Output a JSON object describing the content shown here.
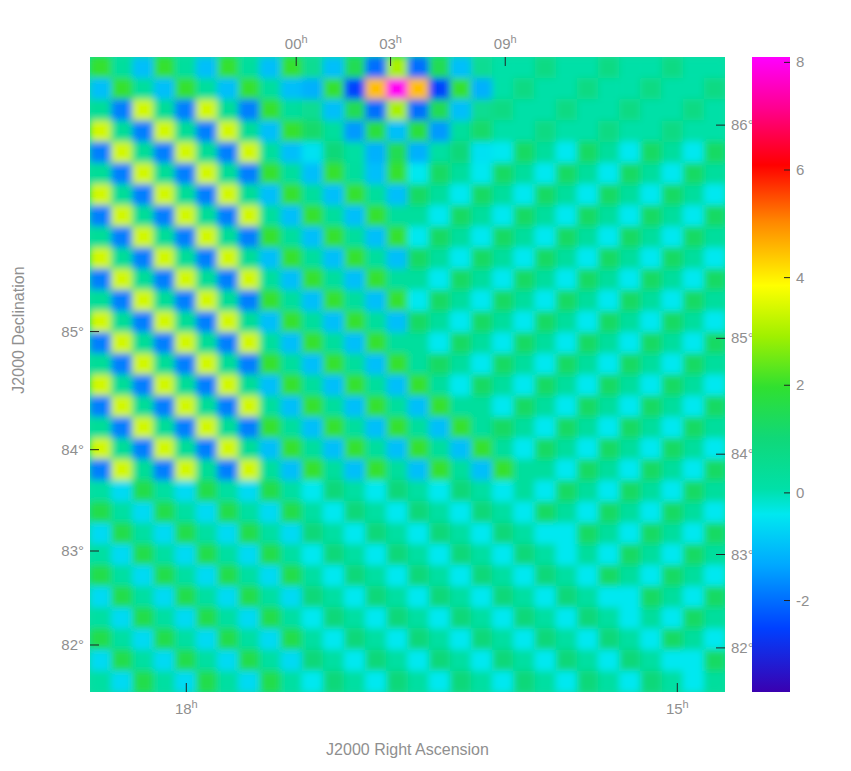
{
  "chart_data": {
    "type": "heatmap",
    "x_label": "J2000 Right Ascension",
    "y_label": "J2000 Declination",
    "ra_ticks_top": [
      {
        "value": 0,
        "label": "00h"
      },
      {
        "value": 3,
        "label": "03h"
      },
      {
        "value": 9,
        "label": "09h"
      }
    ],
    "ra_ticks_bottom": [
      {
        "value": 18,
        "label": "18h"
      },
      {
        "value": 15,
        "label": "15h"
      }
    ],
    "dec_ticks_left": [
      {
        "value": 85,
        "label": "85°"
      },
      {
        "value": 84,
        "label": "84°"
      },
      {
        "value": 83,
        "label": "83°"
      },
      {
        "value": 82,
        "label": "82°"
      }
    ],
    "dec_ticks_right": [
      {
        "value": 86,
        "label": "86°"
      },
      {
        "value": 85,
        "label": "85°"
      },
      {
        "value": 84,
        "label": "84°"
      },
      {
        "value": 83,
        "label": "83°"
      },
      {
        "value": 82,
        "label": "82°"
      }
    ],
    "colorbar": {
      "range": [
        -3.7,
        8.1
      ],
      "ticks": [
        8,
        6,
        4,
        2,
        0,
        -2
      ]
    },
    "cells": [
      [
        2.0,
        0.3,
        -1.0,
        2.0,
        0.3,
        -1.0,
        2.0,
        0.3,
        -1.0,
        2.0,
        0.5,
        -1.0,
        1.5,
        -2.0,
        3.0,
        -2.0,
        1.5,
        -1.0,
        0.5,
        0.1,
        0.1,
        0.8,
        0.1,
        0.1,
        0.8,
        0.1,
        0.1,
        0.8,
        0.1,
        0.1
      ],
      [
        -1.0,
        2.0,
        0.3,
        -1.0,
        2.0,
        0.3,
        -1.0,
        2.0,
        0.3,
        -1.0,
        -1.2,
        2.0,
        -2.5,
        4.5,
        8.0,
        4.5,
        -2.5,
        2.0,
        -1.2,
        0.1,
        0.8,
        0.1,
        0.1,
        0.8,
        0.1,
        0.1,
        0.8,
        0.1,
        0.1,
        0.8
      ],
      [
        0.4,
        -1.8,
        3.4,
        0.4,
        -1.8,
        3.4,
        0.4,
        -1.8,
        2.0,
        0.3,
        0.5,
        -1.0,
        1.5,
        -2.0,
        3.0,
        -2.0,
        1.5,
        -1.0,
        0.5,
        0.8,
        0.1,
        0.1,
        0.8,
        0.1,
        0.1,
        0.8,
        0.1,
        0.1,
        0.8,
        0.1
      ],
      [
        3.4,
        0.4,
        -1.8,
        3.4,
        0.4,
        -1.8,
        3.4,
        0.4,
        -1.0,
        2.0,
        1.2,
        0.3,
        -1.5,
        1.8,
        -1.0,
        1.8,
        -1.5,
        0.3,
        1.2,
        0.1,
        0.1,
        0.8,
        0.1,
        0.1,
        0.8,
        0.1,
        0.1,
        0.8,
        0.1,
        0.1
      ],
      [
        -1.8,
        3.4,
        0.4,
        -1.8,
        3.4,
        0.4,
        -1.8,
        3.4,
        0.3,
        -1.0,
        -0.5,
        1.0,
        0.2,
        -1.2,
        1.5,
        -1.2,
        0.2,
        1.0,
        -0.5,
        -0.4,
        1.3,
        0.3,
        -0.4,
        1.3,
        0.3,
        -0.4,
        1.3,
        0.3,
        -0.4,
        1.3
      ],
      [
        0.4,
        -1.8,
        3.4,
        0.4,
        -1.8,
        3.4,
        0.4,
        -1.8,
        2.0,
        0.3,
        -1.0,
        2.0,
        0.3,
        -1.0,
        2.0,
        -0.4,
        1.3,
        0.3,
        -0.4,
        1.3,
        0.3,
        -0.4,
        1.3,
        0.3,
        -0.4,
        1.3,
        0.3,
        -0.4,
        1.3,
        0.3
      ],
      [
        3.4,
        0.4,
        -1.8,
        3.4,
        0.4,
        -1.8,
        3.4,
        0.4,
        -1.0,
        2.0,
        0.3,
        -1.0,
        2.0,
        0.3,
        -1.0,
        1.3,
        0.3,
        -0.4,
        1.3,
        0.3,
        -0.4,
        1.3,
        0.3,
        -0.4,
        1.3,
        0.3,
        -0.4,
        1.3,
        0.3,
        -0.4
      ],
      [
        -1.8,
        3.4,
        0.4,
        -1.8,
        3.4,
        0.4,
        -1.8,
        3.4,
        0.3,
        -1.0,
        2.0,
        0.3,
        -1.0,
        2.0,
        0.3,
        0.3,
        -0.4,
        1.3,
        0.3,
        -0.4,
        1.3,
        0.3,
        -0.4,
        1.3,
        0.3,
        -0.4,
        1.3,
        0.3,
        -0.4,
        1.3
      ],
      [
        0.4,
        -1.8,
        3.4,
        0.4,
        -1.8,
        3.4,
        0.4,
        -1.8,
        2.0,
        0.3,
        -1.0,
        2.0,
        0.3,
        -1.0,
        2.0,
        -0.4,
        1.3,
        0.3,
        -0.4,
        1.3,
        0.3,
        -0.4,
        1.3,
        0.3,
        -0.4,
        1.3,
        0.3,
        -0.4,
        1.3,
        0.3
      ],
      [
        3.4,
        0.4,
        -1.8,
        3.4,
        0.4,
        -1.8,
        3.4,
        0.4,
        -1.0,
        2.0,
        0.3,
        -1.0,
        2.0,
        0.3,
        -1.0,
        1.3,
        0.3,
        -0.4,
        1.3,
        0.3,
        -0.4,
        1.3,
        0.3,
        -0.4,
        1.3,
        0.3,
        -0.4,
        1.3,
        0.3,
        -0.4
      ],
      [
        -1.8,
        3.4,
        0.4,
        -1.8,
        3.4,
        0.4,
        -1.8,
        3.4,
        0.3,
        -1.0,
        2.0,
        0.3,
        -1.0,
        2.0,
        0.3,
        0.3,
        -0.4,
        1.3,
        0.3,
        -0.4,
        1.3,
        0.3,
        -0.4,
        1.3,
        0.3,
        -0.4,
        1.3,
        0.3,
        -0.4,
        1.3
      ],
      [
        0.4,
        -1.8,
        3.4,
        0.4,
        -1.8,
        3.4,
        0.4,
        -1.8,
        2.0,
        0.3,
        -1.0,
        2.0,
        0.3,
        -1.0,
        2.0,
        -0.4,
        1.3,
        0.3,
        -0.4,
        1.3,
        0.3,
        -0.4,
        1.3,
        0.3,
        -0.4,
        1.3,
        0.3,
        -0.4,
        1.3,
        0.3
      ],
      [
        3.4,
        0.4,
        -1.8,
        3.4,
        0.4,
        -1.8,
        3.4,
        0.4,
        -1.0,
        2.0,
        0.3,
        -1.0,
        2.0,
        0.3,
        -1.0,
        1.3,
        0.3,
        -0.4,
        1.3,
        0.3,
        -0.4,
        1.3,
        0.3,
        -0.4,
        1.3,
        0.3,
        -0.4,
        1.3,
        0.3,
        -0.4
      ],
      [
        -1.8,
        3.4,
        0.4,
        -1.8,
        3.4,
        0.4,
        -1.8,
        3.4,
        0.3,
        -1.0,
        2.0,
        0.3,
        -1.0,
        2.0,
        0.3,
        0.3,
        -0.4,
        1.3,
        0.3,
        -0.4,
        1.3,
        0.3,
        -0.4,
        1.3,
        0.3,
        -0.4,
        1.3,
        0.3,
        -0.4,
        1.3
      ],
      [
        0.4,
        -1.8,
        3.4,
        0.4,
        -1.8,
        3.4,
        0.4,
        -1.8,
        2.0,
        0.3,
        -1.0,
        2.0,
        0.3,
        -1.0,
        2.0,
        0.3,
        1.3,
        0.3,
        -0.4,
        1.3,
        0.3,
        -0.4,
        1.3,
        0.3,
        -0.4,
        1.3,
        0.3,
        -0.4,
        1.3,
        0.3
      ],
      [
        3.4,
        0.4,
        -1.8,
        3.4,
        0.4,
        -1.8,
        3.4,
        0.4,
        -1.0,
        2.0,
        0.3,
        -1.0,
        2.0,
        0.3,
        -1.0,
        2.0,
        0.3,
        -0.4,
        1.3,
        0.3,
        -0.4,
        1.3,
        0.3,
        -0.4,
        1.3,
        0.3,
        -0.4,
        1.3,
        0.3,
        -0.4
      ],
      [
        -1.8,
        3.4,
        0.4,
        -1.8,
        3.4,
        0.4,
        -1.8,
        3.4,
        0.3,
        -1.0,
        2.0,
        0.3,
        -1.0,
        2.0,
        0.3,
        -1.0,
        2.0,
        0.3,
        0.3,
        -0.4,
        1.3,
        0.3,
        -0.4,
        1.3,
        0.3,
        -0.4,
        1.3,
        0.3,
        -0.4,
        1.3
      ],
      [
        0.4,
        -1.8,
        3.4,
        0.4,
        -1.8,
        3.4,
        0.4,
        -1.8,
        2.0,
        0.3,
        -1.0,
        2.0,
        0.3,
        -1.0,
        2.0,
        0.3,
        -1.0,
        2.0,
        0.3,
        1.3,
        0.3,
        -0.4,
        1.3,
        0.3,
        -0.4,
        1.3,
        0.3,
        -0.4,
        1.3,
        0.3
      ],
      [
        3.4,
        0.4,
        -1.8,
        3.4,
        0.4,
        -1.8,
        3.4,
        0.4,
        -1.0,
        2.0,
        0.3,
        -1.0,
        2.0,
        0.3,
        -1.0,
        2.0,
        0.3,
        -1.0,
        2.0,
        0.3,
        -0.4,
        1.3,
        0.3,
        -0.4,
        1.3,
        0.3,
        -0.4,
        1.3,
        0.3,
        -0.4
      ],
      [
        -1.8,
        3.4,
        0.4,
        -1.8,
        3.4,
        0.4,
        -1.8,
        3.4,
        0.3,
        -1.0,
        2.0,
        0.3,
        -1.0,
        2.0,
        0.3,
        -1.0,
        2.0,
        0.3,
        -1.0,
        2.0,
        0.3,
        0.3,
        -0.4,
        1.3,
        0.3,
        -0.4,
        1.3,
        0.3,
        -0.4,
        1.3
      ],
      [
        0.2,
        -0.6,
        1.6,
        0.2,
        -0.6,
        1.6,
        0.2,
        -0.6,
        1.6,
        0.2,
        -0.4,
        1.0,
        0.2,
        -0.4,
        1.0,
        0.2,
        -0.4,
        1.0,
        0.2,
        -0.4,
        0.3,
        -0.4,
        1.3,
        0.3,
        -0.4,
        1.3,
        0.3,
        -0.4,
        1.3,
        0.3
      ],
      [
        1.6,
        0.2,
        -0.6,
        1.6,
        0.2,
        -0.6,
        1.6,
        0.2,
        -0.6,
        1.6,
        0.2,
        -0.4,
        1.0,
        0.2,
        -0.4,
        1.0,
        0.2,
        -0.4,
        1.0,
        0.2,
        -0.4,
        1.3,
        0.3,
        -0.4,
        1.3,
        0.3,
        -0.4,
        1.3,
        0.3,
        -0.4
      ],
      [
        -0.6,
        1.6,
        0.2,
        -0.6,
        1.6,
        0.2,
        -0.6,
        1.6,
        0.2,
        -0.6,
        1.0,
        0.2,
        -0.4,
        1.0,
        0.2,
        -0.4,
        1.0,
        0.2,
        -0.4,
        1.0,
        0.2,
        -0.4,
        -0.4,
        1.3,
        0.3,
        -0.4,
        1.3,
        0.3,
        -0.4,
        1.3
      ],
      [
        0.2,
        -0.6,
        1.6,
        0.2,
        -0.6,
        1.6,
        0.2,
        -0.6,
        1.6,
        0.2,
        -0.4,
        1.0,
        0.2,
        -0.4,
        1.0,
        0.2,
        -0.4,
        1.0,
        0.2,
        -0.4,
        1.0,
        0.2,
        -0.4,
        0.3,
        -0.4,
        1.3,
        0.3,
        -0.4,
        1.3,
        0.3
      ],
      [
        1.6,
        0.2,
        -0.6,
        1.6,
        0.2,
        -0.6,
        1.6,
        0.2,
        -0.6,
        1.6,
        0.2,
        -0.4,
        1.0,
        0.2,
        -0.4,
        1.0,
        0.2,
        -0.4,
        1.0,
        0.2,
        -0.4,
        1.0,
        0.2,
        -0.4,
        1.3,
        0.3,
        -0.4,
        1.3,
        0.3,
        -0.4
      ],
      [
        -0.6,
        1.6,
        0.2,
        -0.6,
        1.6,
        0.2,
        -0.6,
        1.6,
        0.2,
        -0.6,
        1.0,
        0.2,
        -0.4,
        1.0,
        0.2,
        -0.4,
        1.0,
        0.2,
        -0.4,
        1.0,
        0.2,
        -0.4,
        1.0,
        0.2,
        -0.4,
        -0.4,
        1.3,
        0.3,
        -0.4,
        1.3
      ],
      [
        0.2,
        -0.6,
        1.6,
        0.2,
        -0.6,
        1.6,
        0.2,
        -0.6,
        1.6,
        0.2,
        -0.4,
        1.0,
        0.2,
        -0.4,
        1.0,
        0.2,
        -0.4,
        1.0,
        0.2,
        -0.4,
        1.0,
        0.2,
        -0.4,
        1.0,
        0.2,
        -0.4,
        0.3,
        -0.4,
        1.3,
        0.3
      ],
      [
        1.6,
        0.2,
        -0.6,
        1.6,
        0.2,
        -0.6,
        1.6,
        0.2,
        -0.6,
        1.6,
        0.2,
        -0.4,
        1.0,
        0.2,
        -0.4,
        1.0,
        0.2,
        -0.4,
        1.0,
        0.2,
        -0.4,
        1.0,
        0.2,
        -0.4,
        1.0,
        0.2,
        -0.4,
        1.3,
        0.3,
        -0.4
      ],
      [
        -0.6,
        1.6,
        0.2,
        -0.6,
        1.6,
        0.2,
        -0.6,
        1.6,
        0.2,
        -0.6,
        1.0,
        0.2,
        -0.4,
        1.0,
        0.2,
        -0.4,
        1.0,
        0.2,
        -0.4,
        1.0,
        0.2,
        -0.4,
        1.0,
        0.2,
        -0.4,
        1.0,
        0.2,
        -0.4,
        -0.4,
        1.3
      ],
      [
        0.2,
        -0.6,
        1.6,
        0.2,
        -0.6,
        1.6,
        0.2,
        -0.6,
        1.6,
        0.2,
        -0.4,
        1.0,
        0.2,
        -0.4,
        1.0,
        0.2,
        -0.4,
        1.0,
        0.2,
        -0.4,
        1.0,
        0.2,
        -0.4,
        1.0,
        0.2,
        -0.4,
        1.0,
        0.2,
        -0.4,
        0.3
      ]
    ]
  }
}
